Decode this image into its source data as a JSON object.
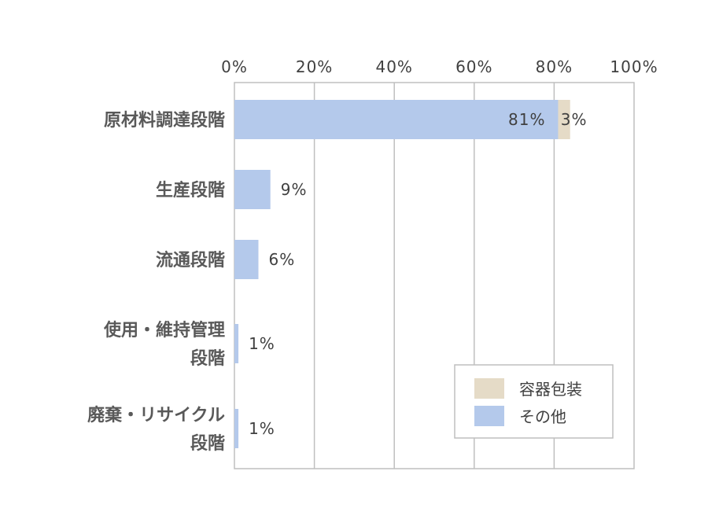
{
  "chart_data": {
    "type": "bar",
    "orientation": "horizontal",
    "stacked": true,
    "categories": [
      [
        "原材料調達段階"
      ],
      [
        "生産段階"
      ],
      [
        "流通段階"
      ],
      [
        "使用・維持管理",
        "段階"
      ],
      [
        "廃棄・リサイクル",
        "段階"
      ]
    ],
    "series": [
      {
        "name": "その他",
        "values": [
          81,
          9,
          6,
          1,
          1
        ],
        "labels": [
          "81%",
          "9%",
          "6%",
          "1%",
          "1%"
        ],
        "color": "#b4c9eb"
      },
      {
        "name": "容器包装",
        "values": [
          3,
          0,
          0,
          0,
          0
        ],
        "labels": [
          "3%",
          "",
          "",
          "",
          ""
        ],
        "color": "#e5dbc7"
      }
    ],
    "xlim": [
      0,
      100
    ],
    "ticks": [
      "0%",
      "20%",
      "40%",
      "60%",
      "80%",
      "100%"
    ],
    "tick_values": [
      0,
      20,
      40,
      60,
      80,
      100
    ],
    "x_axis_position": "top",
    "grid": true,
    "legend": {
      "position": "bottom-right",
      "order": [
        "容器包装",
        "その他"
      ]
    }
  }
}
